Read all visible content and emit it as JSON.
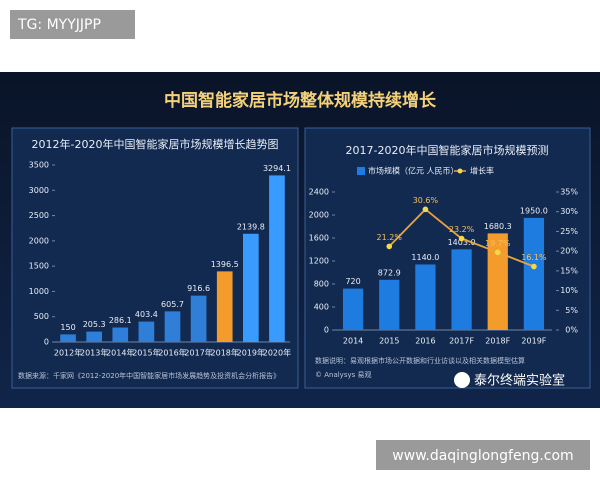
{
  "watermark_top": "TG: MYYJJPP",
  "watermark_bottom": "www.daqinglongfeng.com",
  "header": {
    "title": "中国智能家居市场整体规模持续增长"
  },
  "left_source": "数据来源：千家网《2012-2020年中国智能家居市场发展趋势及投资机会分析报告》",
  "right_notes": {
    "note": "数据说明：易观根据市场公开数据和行业访谈以及相关数据模型估算",
    "copyright": "© Analysys 易观",
    "brand": "泰尔终端实验室"
  },
  "chart_data": [
    {
      "type": "bar",
      "title": "2012年-2020年中国智能家居市场规模增长趋势图",
      "categories": [
        "2012年",
        "2013年",
        "2014年",
        "2015年",
        "2016年",
        "2017年",
        "2018年",
        "2019年",
        "2020年"
      ],
      "values": [
        150,
        205.3,
        286.1,
        403.4,
        605.7,
        916.6,
        1396.5,
        2139.8,
        3294.1
      ],
      "colors": [
        "#2f7fd8",
        "#2f7fd8",
        "#2f7fd8",
        "#2f7fd8",
        "#2f7fd8",
        "#2f7fd8",
        "#f39c2b",
        "#3a9bff",
        "#3a9bff"
      ],
      "ylim": [
        0,
        3500
      ],
      "yticks": [
        0,
        500,
        1000,
        1500,
        2000,
        2500,
        3000,
        3500
      ]
    },
    {
      "type": "combo",
      "title": "2017-2020年中国智能家居市场规模预测",
      "categories": [
        "2014",
        "2015",
        "2016",
        "2017F",
        "2018F",
        "2019F"
      ],
      "series": [
        {
          "name": "市场规模（亿元 人民币）",
          "color": "#1e7be0",
          "colors": [
            "#1e7be0",
            "#1e7be0",
            "#1e7be0",
            "#1e7be0",
            "#f39c2b",
            "#1e7be0"
          ],
          "values": [
            720,
            872.9,
            1140.0,
            1403.0,
            1680.3,
            1950.0
          ],
          "value_labels": [
            "720",
            "872.9",
            "1140.0",
            "1403.0",
            "1680.3",
            "1950.0"
          ]
        },
        {
          "name": "增长率",
          "color": "#e8a33a",
          "axis": "y2",
          "values": [
            null,
            21.2,
            30.6,
            23.2,
            19.7,
            16.1
          ],
          "value_labels": [
            null,
            "21.2%",
            "30.6%",
            "23.2%",
            "19.7%",
            "16.1%"
          ]
        }
      ],
      "ylim": [
        0,
        2400
      ],
      "yticks": [
        0,
        400,
        800,
        1200,
        1600,
        2000,
        2400
      ],
      "y2lim": [
        0,
        35
      ],
      "y2ticks": [
        {
          "value": 0,
          "label": "0%"
        },
        {
          "value": 5,
          "label": "5%"
        },
        {
          "value": 10,
          "label": "10%"
        },
        {
          "value": 15,
          "label": "15%"
        },
        {
          "value": 20,
          "label": "20%"
        },
        {
          "value": 25,
          "label": "25%"
        },
        {
          "value": 30,
          "label": "30%"
        },
        {
          "value": 35,
          "label": "35%"
        }
      ]
    }
  ]
}
